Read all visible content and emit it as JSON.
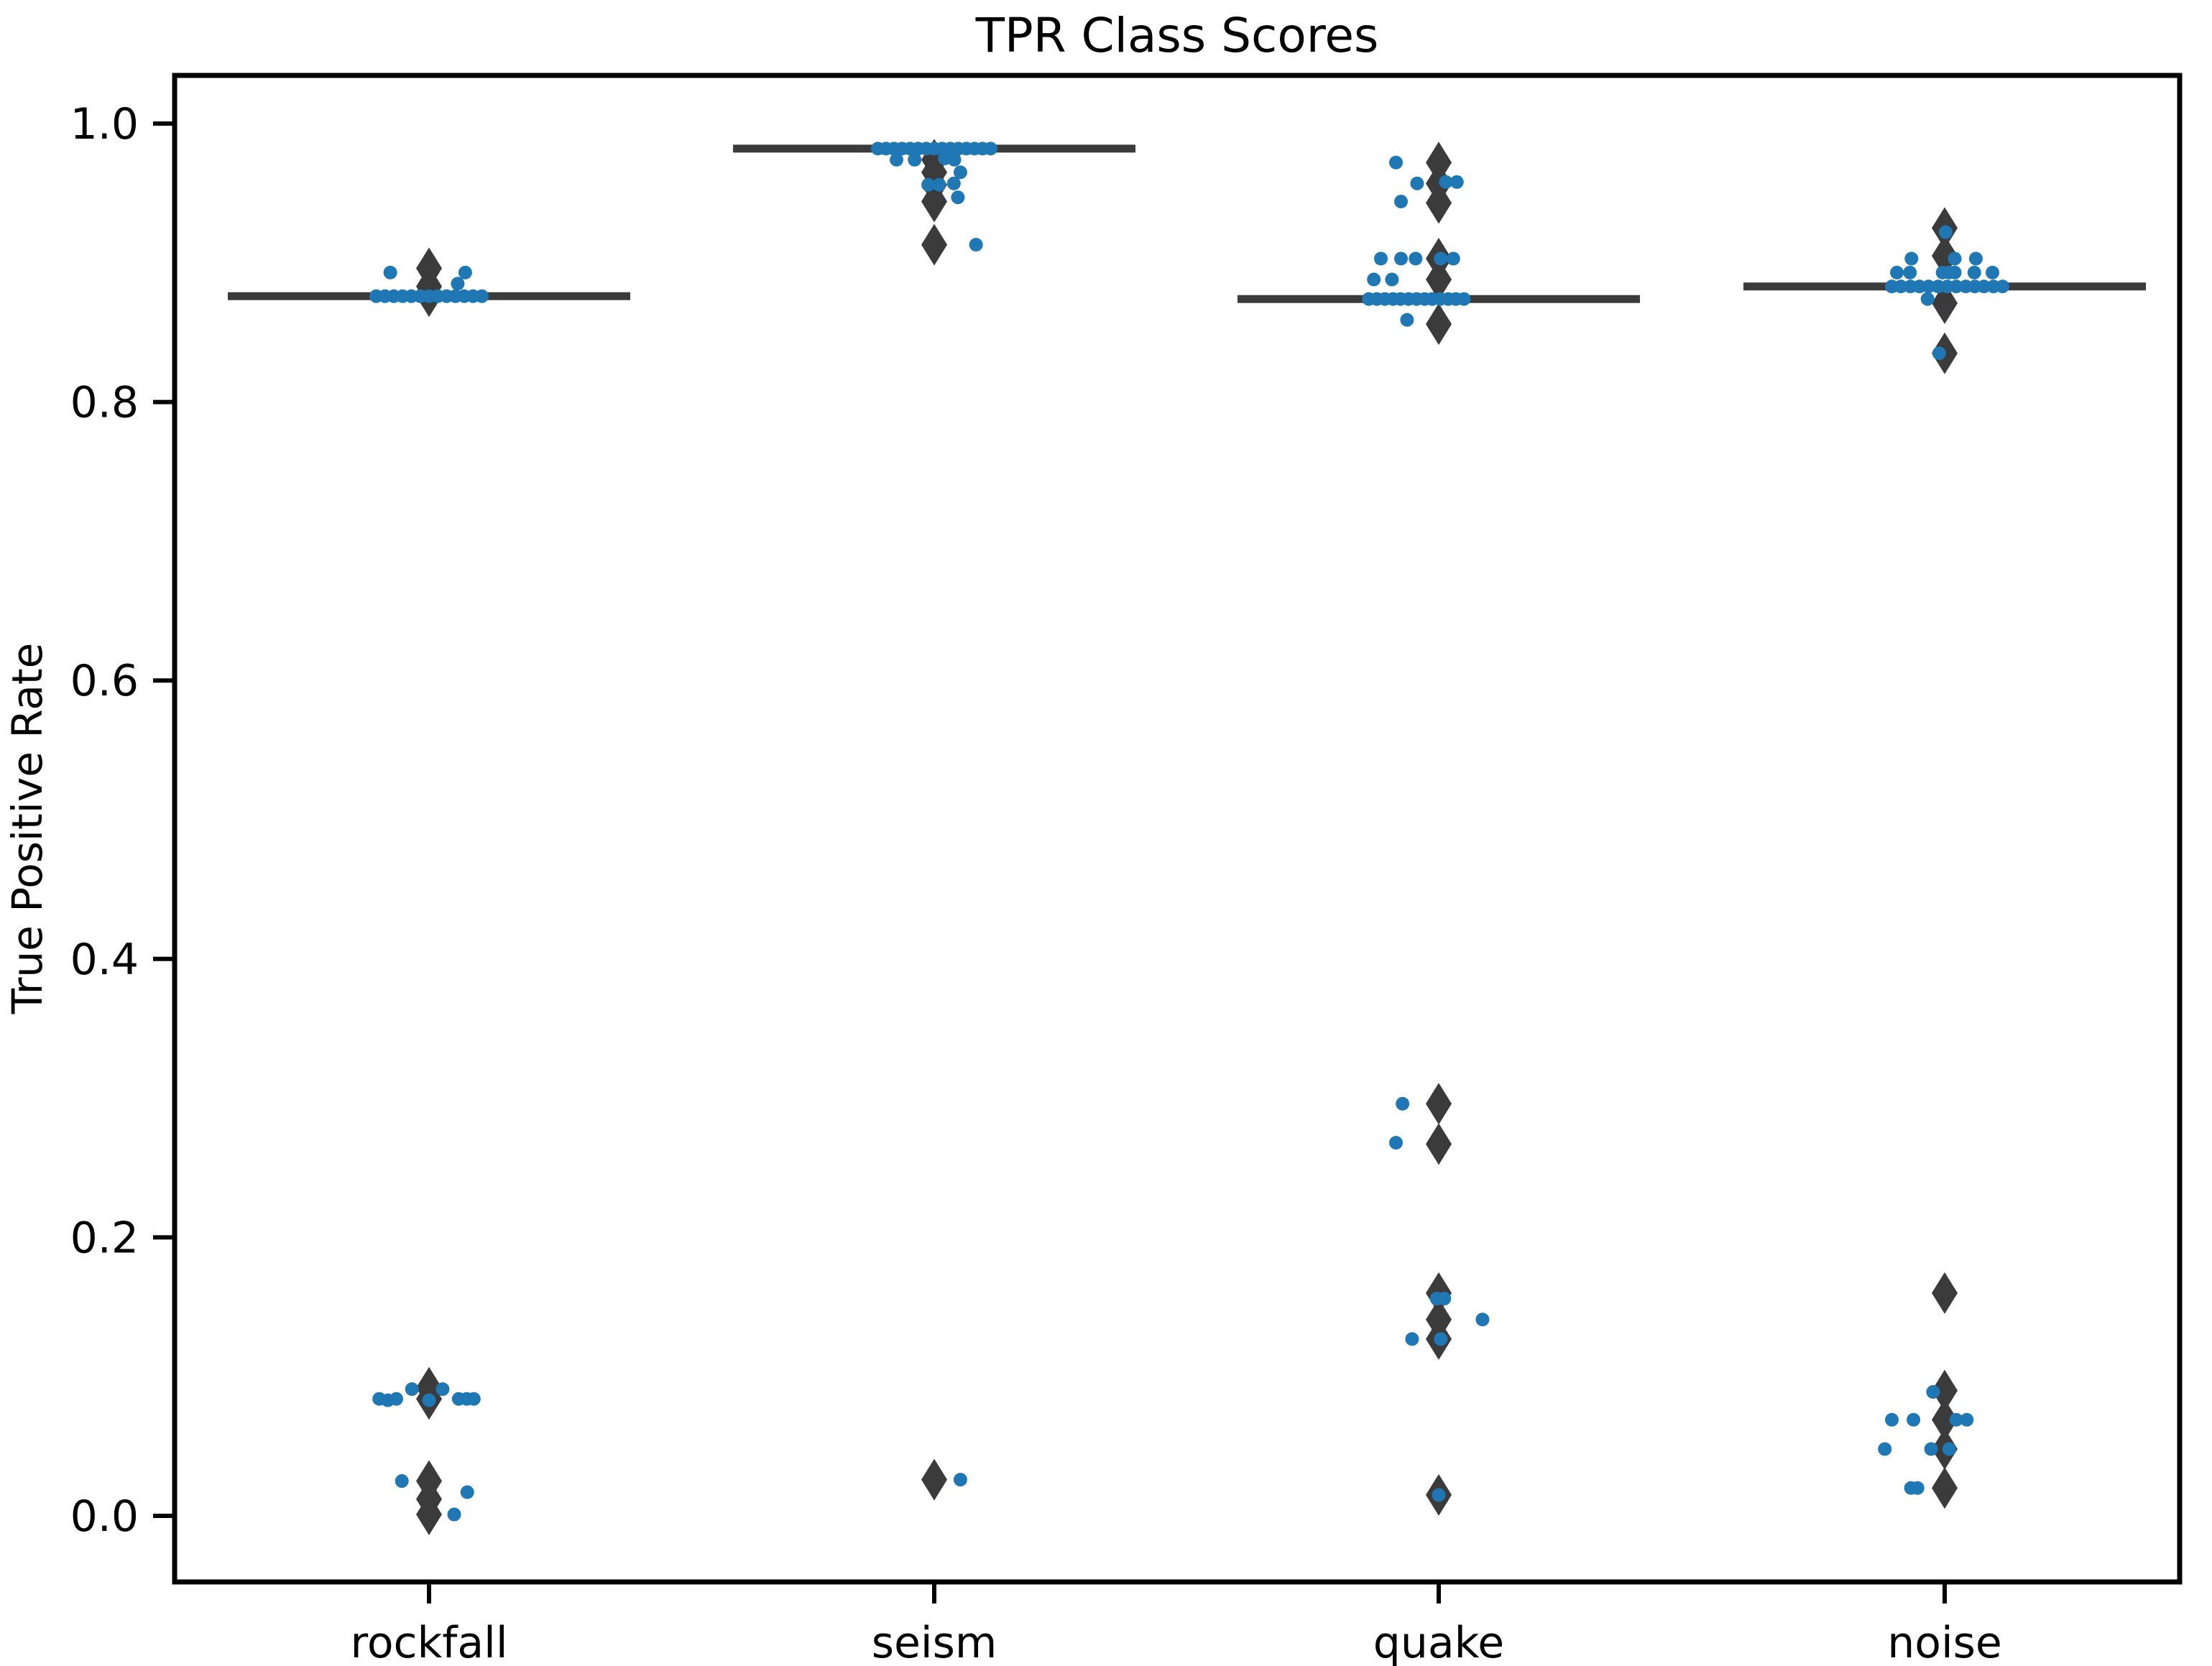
{
  "figure": {
    "background": "#ffffff"
  },
  "chart_data": {
    "type": "scatter",
    "variant": "stripplot_over_collapsed_boxplot",
    "title": "TPR Class Scores",
    "xlabel": "",
    "ylabel": "True Positive Rate",
    "categories": [
      "rockfall",
      "seism",
      "quake",
      "noise"
    ],
    "ylim": [
      -0.047,
      1.035
    ],
    "yticks": [
      1.0,
      0.8,
      0.6,
      0.4,
      0.2,
      0.0
    ],
    "ytick_labels": [
      "1.0",
      "0.8",
      "0.6",
      "0.4",
      "0.2",
      "0.0"
    ],
    "grid": false,
    "legend": false,
    "colors": {
      "point": "#1f77b4",
      "box_line": "#3b3b3b",
      "flier_diamond": "#3b3b3b",
      "axis": "#000000"
    },
    "marker_notes": "blue circles = per-run strip points (x-jittered); dark diamonds = boxplot fliers at category center; thick dark horizontal segment = collapsed box/median line",
    "series": [
      {
        "name": "rockfall",
        "median": 0.876,
        "box_halfwidth": 0.4,
        "flier_diamonds": [
          0.896,
          0.883,
          0.876,
          0.092,
          0.084,
          0.025,
          0.012,
          0.001
        ],
        "points": [
          [
            -0.077,
            0.893
          ],
          [
            0.072,
            0.893
          ],
          [
            0.057,
            0.885
          ],
          [
            -0.105,
            0.876
          ],
          [
            -0.0875,
            0.876
          ],
          [
            -0.07,
            0.876
          ],
          [
            -0.0525,
            0.876
          ],
          [
            -0.035,
            0.876
          ],
          [
            -0.0175,
            0.876
          ],
          [
            0.0,
            0.876
          ],
          [
            0.0175,
            0.876
          ],
          [
            0.035,
            0.876
          ],
          [
            0.0525,
            0.876
          ],
          [
            0.07,
            0.876
          ],
          [
            0.0875,
            0.876
          ],
          [
            0.105,
            0.876
          ],
          [
            -0.099,
            0.084
          ],
          [
            -0.082,
            0.083
          ],
          [
            -0.065,
            0.084
          ],
          [
            -0.034,
            0.091
          ],
          [
            0.0,
            0.083
          ],
          [
            0.027,
            0.091
          ],
          [
            0.059,
            0.084
          ],
          [
            0.075,
            0.084
          ],
          [
            0.089,
            0.084
          ],
          [
            -0.054,
            0.025
          ],
          [
            0.076,
            0.017
          ],
          [
            0.05,
            0.001
          ]
        ]
      },
      {
        "name": "seism",
        "median": 0.982,
        "box_halfwidth": 0.4,
        "flier_diamonds": [
          0.974,
          0.965,
          0.956,
          0.944,
          0.913,
          0.026
        ],
        "points": [
          [
            -0.112,
            0.982
          ],
          [
            -0.096,
            0.982
          ],
          [
            -0.08,
            0.982
          ],
          [
            -0.064,
            0.982
          ],
          [
            -0.048,
            0.982
          ],
          [
            -0.032,
            0.982
          ],
          [
            -0.016,
            0.982
          ],
          [
            0.0,
            0.982
          ],
          [
            0.016,
            0.982
          ],
          [
            0.032,
            0.982
          ],
          [
            0.048,
            0.982
          ],
          [
            0.064,
            0.982
          ],
          [
            0.08,
            0.982
          ],
          [
            0.096,
            0.982
          ],
          [
            0.112,
            0.982
          ],
          [
            -0.075,
            0.974
          ],
          [
            -0.039,
            0.974
          ],
          [
            0.021,
            0.975
          ],
          [
            0.04,
            0.974
          ],
          [
            0.052,
            0.965
          ],
          [
            -0.012,
            0.956
          ],
          [
            0.01,
            0.956
          ],
          [
            0.039,
            0.957
          ],
          [
            0.047,
            0.947
          ],
          [
            0.083,
            0.913
          ],
          [
            0.052,
            0.026
          ]
        ]
      },
      {
        "name": "quake",
        "median": 0.874,
        "box_halfwidth": 0.4,
        "flier_diamonds": [
          0.972,
          0.957,
          0.943,
          0.903,
          0.888,
          0.856,
          0.296,
          0.267,
          0.16,
          0.141,
          0.127,
          0.015
        ],
        "points": [
          [
            -0.085,
            0.972
          ],
          [
            -0.043,
            0.957
          ],
          [
            0.014,
            0.958
          ],
          [
            0.036,
            0.958
          ],
          [
            -0.075,
            0.944
          ],
          [
            -0.115,
            0.903
          ],
          [
            -0.075,
            0.903
          ],
          [
            -0.046,
            0.903
          ],
          [
            0.004,
            0.903
          ],
          [
            0.029,
            0.903
          ],
          [
            -0.129,
            0.888
          ],
          [
            -0.093,
            0.888
          ],
          [
            -0.139,
            0.874
          ],
          [
            -0.123,
            0.874
          ],
          [
            -0.107,
            0.874
          ],
          [
            -0.091,
            0.874
          ],
          [
            -0.076,
            0.874
          ],
          [
            -0.06,
            0.874
          ],
          [
            -0.044,
            0.874
          ],
          [
            -0.028,
            0.874
          ],
          [
            -0.013,
            0.874
          ],
          [
            0.003,
            0.874
          ],
          [
            0.019,
            0.874
          ],
          [
            0.034,
            0.874
          ],
          [
            0.05,
            0.874
          ],
          [
            -0.063,
            0.859
          ],
          [
            -0.072,
            0.296
          ],
          [
            -0.085,
            0.268
          ],
          [
            -0.004,
            0.156
          ],
          [
            0.011,
            0.156
          ],
          [
            0.087,
            0.141
          ],
          [
            -0.053,
            0.127
          ],
          [
            0.004,
            0.127
          ],
          [
            0.0,
            0.015
          ]
        ]
      },
      {
        "name": "noise",
        "median": 0.883,
        "box_halfwidth": 0.4,
        "flier_diamonds": [
          0.925,
          0.905,
          0.871,
          0.835,
          0.16,
          0.09,
          0.069,
          0.048,
          0.02
        ],
        "points": [
          [
            0.002,
            0.922
          ],
          [
            -0.066,
            0.903
          ],
          [
            0.02,
            0.903
          ],
          [
            0.062,
            0.903
          ],
          [
            -0.095,
            0.893
          ],
          [
            -0.069,
            0.893
          ],
          [
            -0.004,
            0.893
          ],
          [
            0.009,
            0.893
          ],
          [
            0.02,
            0.893
          ],
          [
            0.059,
            0.893
          ],
          [
            0.095,
            0.893
          ],
          [
            -0.105,
            0.883
          ],
          [
            -0.087,
            0.883
          ],
          [
            -0.068,
            0.883
          ],
          [
            -0.05,
            0.883
          ],
          [
            -0.032,
            0.883
          ],
          [
            -0.013,
            0.883
          ],
          [
            0.005,
            0.883
          ],
          [
            0.023,
            0.883
          ],
          [
            0.042,
            0.883
          ],
          [
            0.06,
            0.883
          ],
          [
            0.078,
            0.883
          ],
          [
            0.097,
            0.883
          ],
          [
            0.115,
            0.883
          ],
          [
            -0.034,
            0.874
          ],
          [
            -0.011,
            0.835
          ],
          [
            -0.023,
            0.089
          ],
          [
            -0.105,
            0.069
          ],
          [
            -0.062,
            0.069
          ],
          [
            0.023,
            0.069
          ],
          [
            0.044,
            0.069
          ],
          [
            -0.119,
            0.048
          ],
          [
            -0.027,
            0.048
          ],
          [
            0.009,
            0.048
          ],
          [
            -0.067,
            0.02
          ],
          [
            -0.054,
            0.02
          ]
        ]
      }
    ]
  }
}
